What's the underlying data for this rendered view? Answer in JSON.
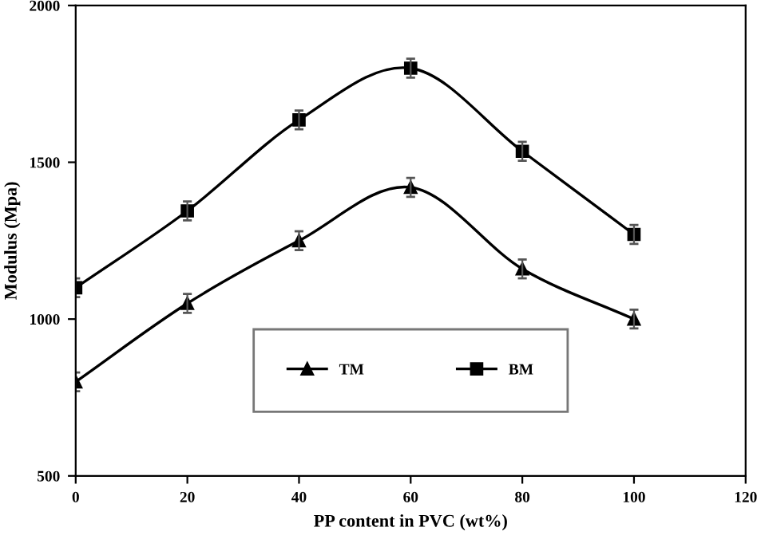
{
  "chart_data": {
    "type": "line",
    "xlabel": "PP content in PVC (wt%)",
    "ylabel": "Modulus (Mpa)",
    "x": [
      0,
      20,
      40,
      60,
      80,
      100
    ],
    "series": [
      {
        "name": "TM",
        "color": "#000000",
        "marker": "triangle",
        "values": [
          800,
          1050,
          1250,
          1420,
          1160,
          1000
        ],
        "errors": [
          30,
          30,
          30,
          30,
          30,
          30
        ]
      },
      {
        "name": "BM",
        "color": "#000000",
        "marker": "square",
        "values": [
          1100,
          1345,
          1635,
          1800,
          1535,
          1270
        ],
        "errors": [
          30,
          30,
          30,
          30,
          30,
          30
        ]
      }
    ],
    "xlim": [
      0,
      120
    ],
    "xticks": [
      0,
      20,
      40,
      60,
      80,
      100,
      120
    ],
    "ylim": [
      500,
      2000
    ],
    "yticks": [
      500,
      1000,
      1500,
      2000
    ],
    "grid": false,
    "legend": "bottom",
    "line_style": "solid"
  }
}
